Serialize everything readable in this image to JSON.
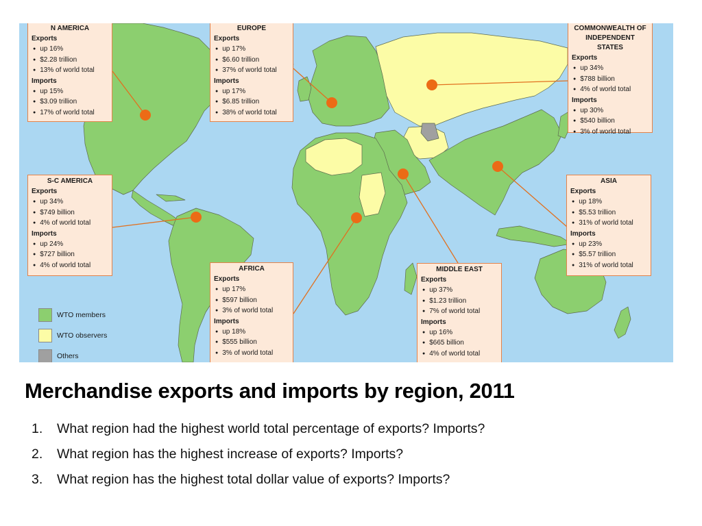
{
  "colors": {
    "ocean": "#abd7f2",
    "wto_member": "#8ccf6f",
    "wto_observer": "#fcfca6",
    "other": "#a0a0a0",
    "box_fill": "#fde9d9",
    "box_border": "#e3824a",
    "pointer": "#ec6b16"
  },
  "regions": [
    {
      "id": "n-america",
      "title": "N AMERICA",
      "exports_label": "Exports",
      "exports": [
        "up 16%",
        "$2.28 trillion",
        "13% of world total"
      ],
      "imports_label": "Imports",
      "imports": [
        "up 15%",
        "$3.09 trillion",
        "17% of world total"
      ]
    },
    {
      "id": "europe",
      "title": "EUROPE",
      "exports_label": "Exports",
      "exports": [
        "up 17%",
        "$6.60 trillion",
        "37% of world total"
      ],
      "imports_label": "Imports",
      "imports": [
        "up 17%",
        "$6.85 trillion",
        "38% of world total"
      ]
    },
    {
      "id": "cis",
      "title": "COMMONWEALTH OF INDEPENDENT STATES",
      "exports_label": "Exports",
      "exports": [
        "up 34%",
        "$788 billion",
        "4% of world total"
      ],
      "imports_label": "Imports",
      "imports": [
        "up 30%",
        "$540 billion",
        "3% of world total"
      ]
    },
    {
      "id": "sc-america",
      "title": "S-C AMERICA",
      "exports_label": "Exports",
      "exports": [
        "up 34%",
        "$749 billion",
        "4% of world total"
      ],
      "imports_label": "Imports",
      "imports": [
        "up 24%",
        "$727 billion",
        "4% of world total"
      ]
    },
    {
      "id": "asia",
      "title": "ASIA",
      "exports_label": "Exports",
      "exports": [
        "up 18%",
        "$5.53 trillion",
        "31% of world total"
      ],
      "imports_label": "Imports",
      "imports": [
        "up 23%",
        "$5.57 trillion",
        "31% of world total"
      ]
    },
    {
      "id": "africa",
      "title": "AFRICA",
      "exports_label": "Exports",
      "exports": [
        "up 17%",
        "$597 billion",
        "3% of world total"
      ],
      "imports_label": "Imports",
      "imports": [
        "up 18%",
        "$555 billion",
        "3% of world total"
      ]
    },
    {
      "id": "middle-east",
      "title": "MIDDLE EAST",
      "exports_label": "Exports",
      "exports": [
        "up 37%",
        "$1.23 trillion",
        "7% of world total"
      ],
      "imports_label": "Imports",
      "imports": [
        "up 16%",
        "$665 billion",
        "4% of world total"
      ]
    }
  ],
  "legend": [
    {
      "label": "WTO members",
      "color": "#8ccf6f"
    },
    {
      "label": "WTO observers",
      "color": "#fcfca6"
    },
    {
      "label": "Others",
      "color": "#a0a0a0"
    }
  ],
  "caption": "Merchandise exports and imports by region, 2011",
  "questions": [
    {
      "num": "1.",
      "text": "What region had the highest world total percentage of exports? Imports?"
    },
    {
      "num": "2.",
      "text": "What region has the highest increase of exports? Imports?"
    },
    {
      "num": "3.",
      "text": "What region has the highest total dollar value of exports? Imports?"
    }
  ]
}
